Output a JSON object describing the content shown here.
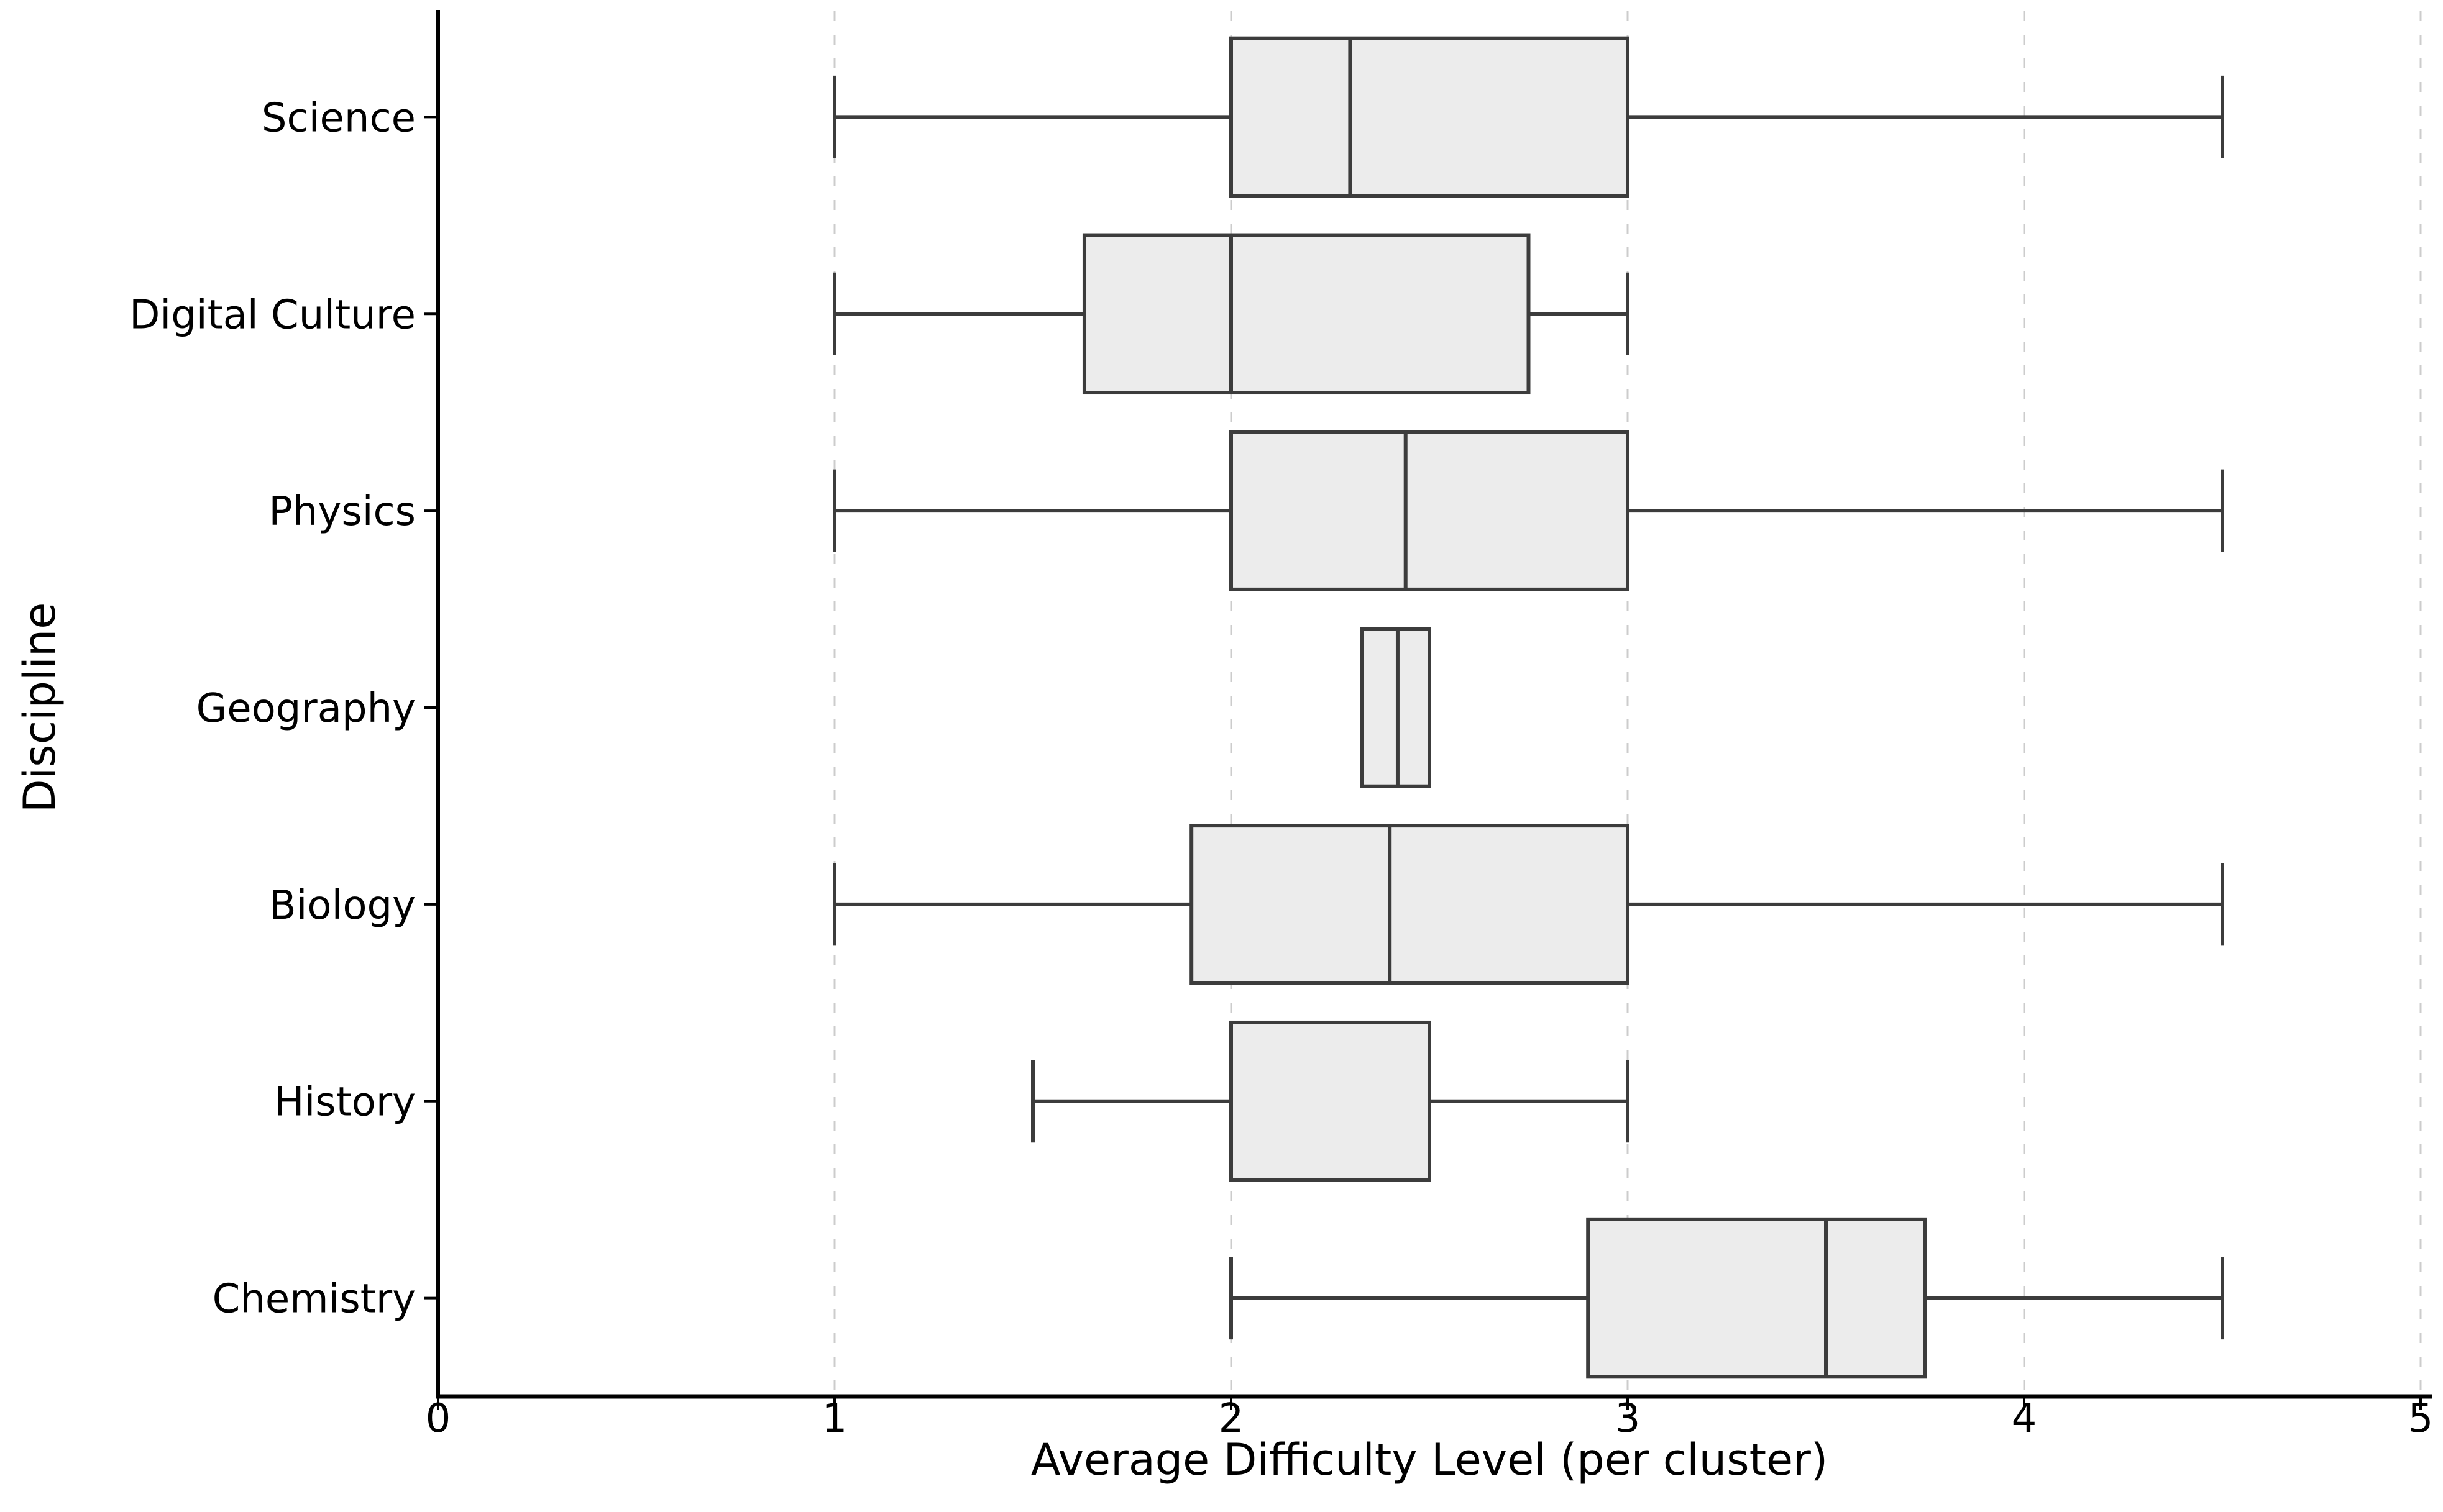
{
  "figure": {
    "background": "#ffffff",
    "description": "Horizontal boxplot of average difficulty level by discipline"
  },
  "chart_data": {
    "type": "boxplot",
    "orientation": "horizontal",
    "title": "",
    "xlabel": "Average Difficulty Level (per cluster)",
    "ylabel": "Discipline",
    "xlim": [
      0,
      5
    ],
    "xticks": [
      0,
      1,
      2,
      3,
      4,
      5
    ],
    "xtick_labels": [
      "0",
      "1",
      "2",
      "3",
      "4",
      "5"
    ],
    "grid": "vertical-dashed",
    "legend": "none",
    "categories": [
      "Science",
      "Digital Culture",
      "Physics",
      "Geography",
      "Biology",
      "History",
      "Chemistry"
    ],
    "boxes": [
      {
        "label": "Science",
        "whisker_low": 1.0,
        "q1": 2.0,
        "median": 2.3,
        "q3": 3.0,
        "whisker_high": 4.5
      },
      {
        "label": "Digital Culture",
        "whisker_low": 1.0,
        "q1": 1.63,
        "median": 2.0,
        "q3": 2.75,
        "whisker_high": 3.0
      },
      {
        "label": "Physics",
        "whisker_low": 1.0,
        "q1": 2.0,
        "median": 2.44,
        "q3": 3.0,
        "whisker_high": 4.5
      },
      {
        "label": "Geography",
        "whisker_low": 2.33,
        "q1": 2.33,
        "median": 2.42,
        "q3": 2.5,
        "whisker_high": 2.5
      },
      {
        "label": "Biology",
        "whisker_low": 1.0,
        "q1": 1.9,
        "median": 2.4,
        "q3": 3.0,
        "whisker_high": 4.5
      },
      {
        "label": "History",
        "whisker_low": 1.5,
        "q1": 2.0,
        "median": 2.0,
        "q3": 2.5,
        "whisker_high": 3.0
      },
      {
        "label": "Chemistry",
        "whisker_low": 2.0,
        "q1": 2.9,
        "median": 3.5,
        "q3": 3.75,
        "whisker_high": 4.5
      }
    ],
    "colors": {
      "box_fill": "#ececec",
      "box_line": "#3c3c3c",
      "median_line": "#3c3c3c",
      "whisker_line": "#3c3c3c",
      "grid_line": "#cccccc",
      "axis_line": "#000000",
      "text": "#000000"
    }
  }
}
